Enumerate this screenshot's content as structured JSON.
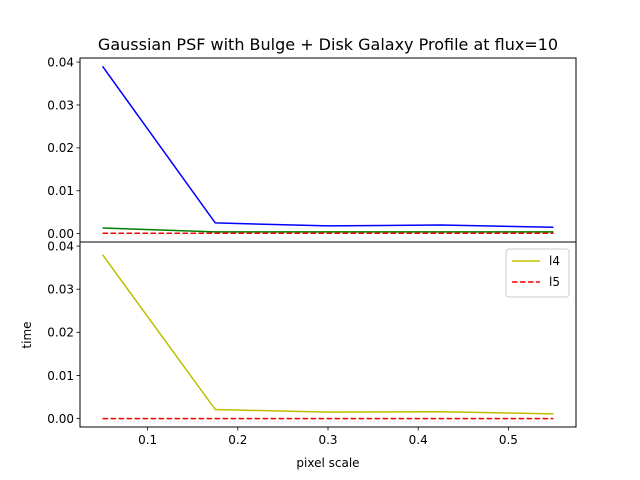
{
  "chart_data": [
    {
      "type": "line",
      "title": "Gaussian PSF with Bulge + Disk Galaxy Profile at flux=10",
      "xlabel": "",
      "ylabel": "",
      "xlim": [
        0.025,
        0.575
      ],
      "ylim": [
        -0.00195,
        0.04095
      ],
      "yticks": [
        0.0,
        0.01,
        0.02,
        0.03,
        0.04
      ],
      "ytick_labels": [
        "0.00",
        "0.01",
        "0.02",
        "0.03",
        "0.04"
      ],
      "x": [
        0.05,
        0.175,
        0.3,
        0.425,
        0.55
      ],
      "series": [
        {
          "values": [
            0.039,
            0.0025,
            0.0018,
            0.002,
            0.0015
          ],
          "color": "#0000ff",
          "dash": "solid"
        },
        {
          "values": [
            0.0013,
            0.0004,
            0.0004,
            0.0004,
            0.0004
          ],
          "color": "#008000",
          "dash": "solid"
        },
        {
          "values": [
            0.0001,
            0.0001,
            0.0001,
            0.0001,
            0.0001
          ],
          "color": "#ff0000",
          "dash": "dashed"
        }
      ],
      "grid": false
    },
    {
      "type": "line",
      "title": "",
      "xlabel": "pixel scale",
      "ylabel": "time",
      "xlim": [
        0.025,
        0.575
      ],
      "ylim": [
        -0.00195,
        0.04095
      ],
      "xticks": [
        0.1,
        0.2,
        0.3,
        0.4,
        0.5
      ],
      "xtick_labels": [
        "0.1",
        "0.2",
        "0.3",
        "0.4",
        "0.5"
      ],
      "yticks": [
        0.0,
        0.01,
        0.02,
        0.03,
        0.04
      ],
      "ytick_labels": [
        "0.00",
        "0.01",
        "0.02",
        "0.03",
        "0.04"
      ],
      "x": [
        0.05,
        0.175,
        0.3,
        0.425,
        0.55
      ],
      "series": [
        {
          "name": "l4",
          "values": [
            0.038,
            0.0021,
            0.0015,
            0.0016,
            0.0011
          ],
          "color": "#bfbf00",
          "dash": "solid"
        },
        {
          "name": "l5",
          "values": [
            0.0,
            0.0,
            0.0,
            0.0,
            0.0
          ],
          "color": "#ff0000",
          "dash": "dashed"
        }
      ],
      "legend": {
        "position": "top-right",
        "entries": [
          "l4",
          "l5"
        ]
      },
      "grid": false
    }
  ]
}
